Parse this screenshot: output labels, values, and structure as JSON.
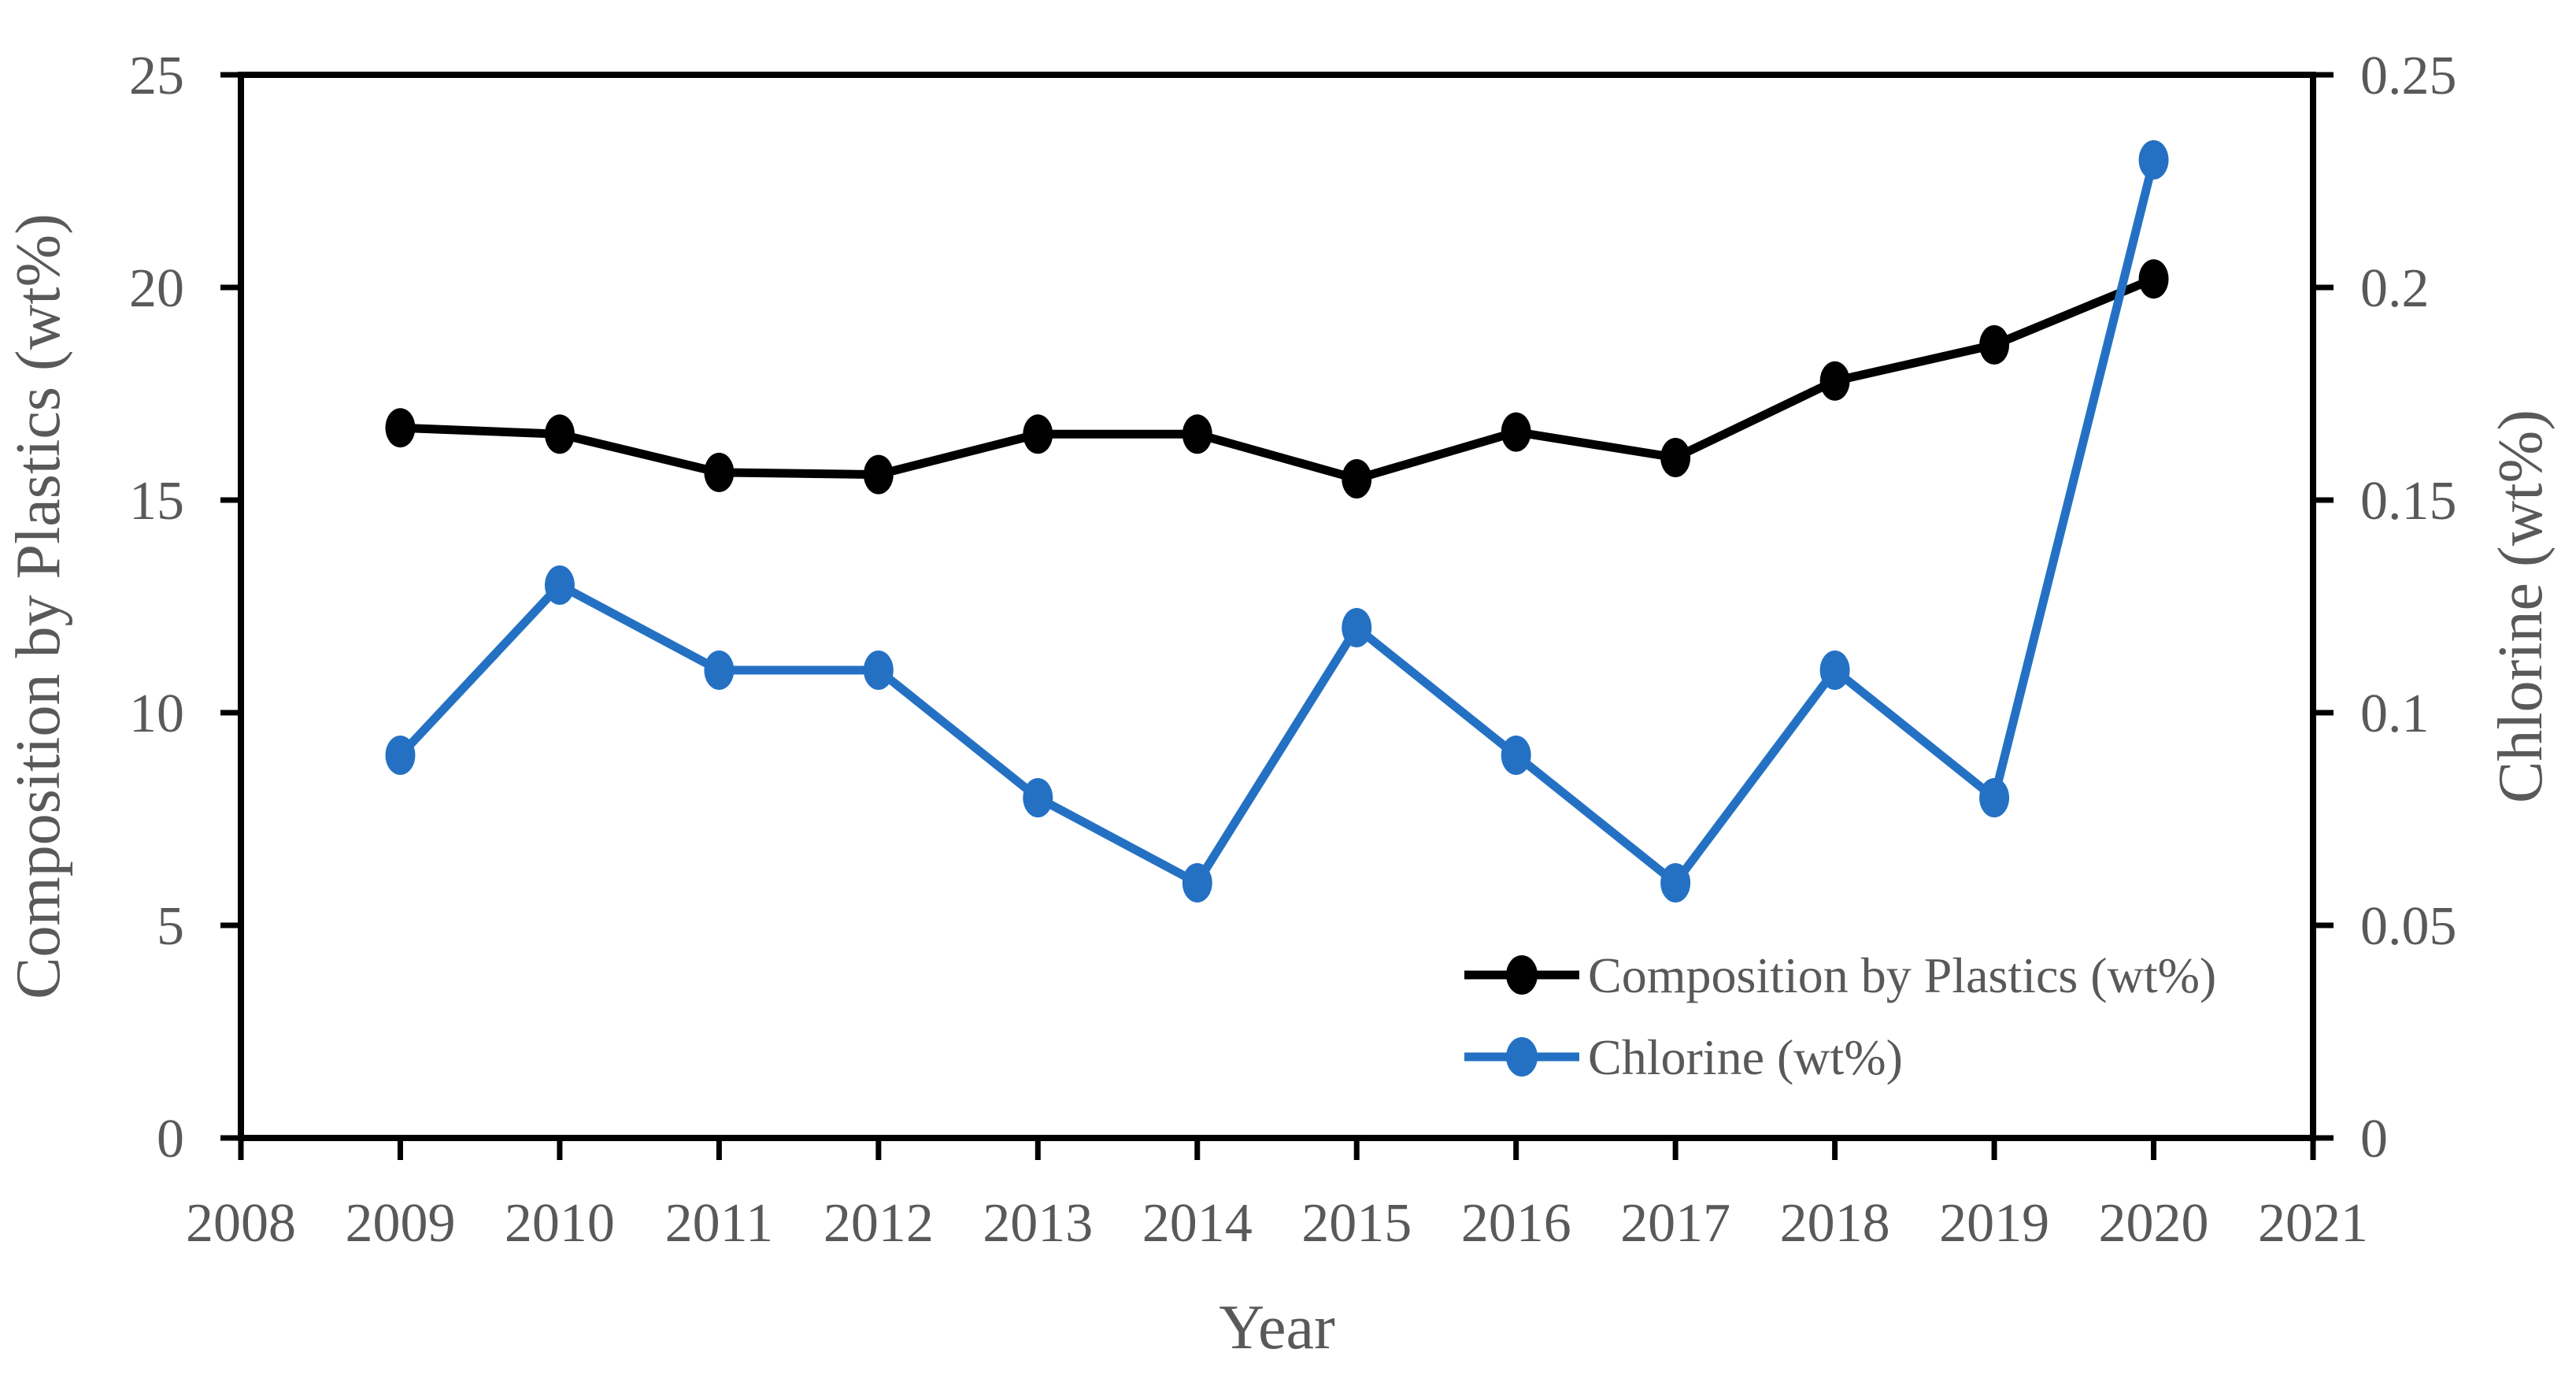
{
  "chart_data": {
    "type": "line",
    "title": "",
    "x": [
      2009,
      2010,
      2011,
      2012,
      2013,
      2014,
      2015,
      2016,
      2017,
      2018,
      2019,
      2020
    ],
    "series": [
      {
        "name": "Composition by Plastics (wt%)",
        "axis": "left",
        "color": "#000000",
        "marker": "circle",
        "values": [
          16.7,
          16.55,
          15.65,
          15.6,
          16.55,
          16.55,
          15.5,
          16.6,
          16.0,
          17.8,
          18.65,
          20.2
        ]
      },
      {
        "name": "Chlorine (wt%)",
        "axis": "right",
        "color": "#2471C4",
        "marker": "circle",
        "values": [
          0.09,
          0.13,
          0.11,
          0.11,
          0.08,
          0.06,
          0.12,
          0.09,
          0.06,
          0.11,
          0.08,
          0.23
        ]
      }
    ],
    "xlabel": "Year",
    "ylabel_left": "Composition by Plastics (wt%)",
    "ylabel_right": "Chlorine (wt%)",
    "xlim": [
      2008,
      2021
    ],
    "ylim_left": [
      0,
      25
    ],
    "ylim_right": [
      0,
      0.25
    ],
    "x_ticks": [
      "2008",
      "2009",
      "2010",
      "2011",
      "2012",
      "2013",
      "2014",
      "2015",
      "2016",
      "2017",
      "2018",
      "2019",
      "2020",
      "2021"
    ],
    "y_ticks_left": [
      "0",
      "5",
      "10",
      "15",
      "20",
      "25"
    ],
    "y_ticks_right": [
      "0",
      "0.05",
      "0.1",
      "0.15",
      "0.2",
      "0.25"
    ],
    "grid": false,
    "legend_position": "inside-bottom-right",
    "legend": [
      "Composition by Plastics (wt%)",
      "Chlorine (wt%)"
    ],
    "styles": {
      "axis_color": "#000000",
      "tick_label_color": "#595959",
      "background": "#ffffff"
    }
  }
}
